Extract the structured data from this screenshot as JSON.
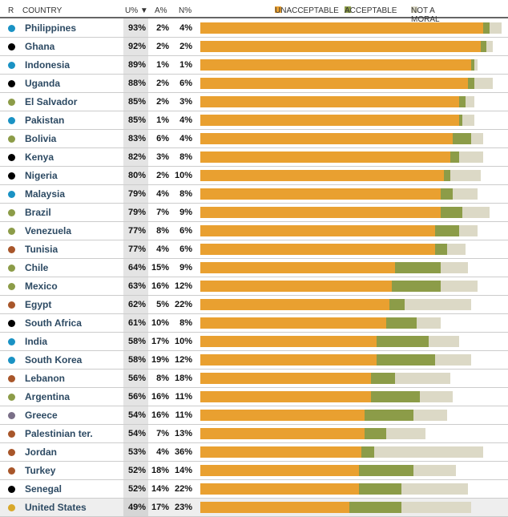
{
  "chart_data": {
    "type": "bar",
    "stacked": true,
    "orientation": "horizontal",
    "columns": {
      "region": "R",
      "country": "COUNTRY",
      "u": "U%",
      "a": "A%",
      "n": "N%",
      "sort_indicator": "▼"
    },
    "legend": [
      {
        "name": "UNACCEPTABLE",
        "color": "#e9a030"
      },
      {
        "name": "ACCEPTABLE",
        "color": "#8c9c48"
      },
      {
        "name": "NOT A MORAL ISSUE",
        "color": "#dcd9c6"
      }
    ],
    "legend_position": "top-right",
    "region_colors": {
      "asia": "#1a92c4",
      "africa": "#000000",
      "latin_america": "#8c9c48",
      "middle_east": "#a8562a",
      "europe": "#7a6f88",
      "us": "#d8a82a"
    },
    "rows": [
      {
        "country": "Philippines",
        "region": "asia",
        "u": 93,
        "a": 2,
        "n": 4
      },
      {
        "country": "Ghana",
        "region": "africa",
        "u": 92,
        "a": 2,
        "n": 2
      },
      {
        "country": "Indonesia",
        "region": "asia",
        "u": 89,
        "a": 1,
        "n": 1
      },
      {
        "country": "Uganda",
        "region": "africa",
        "u": 88,
        "a": 2,
        "n": 6
      },
      {
        "country": "El Salvador",
        "region": "latin_america",
        "u": 85,
        "a": 2,
        "n": 3
      },
      {
        "country": "Pakistan",
        "region": "asia",
        "u": 85,
        "a": 1,
        "n": 4
      },
      {
        "country": "Bolivia",
        "region": "latin_america",
        "u": 83,
        "a": 6,
        "n": 4
      },
      {
        "country": "Kenya",
        "region": "africa",
        "u": 82,
        "a": 3,
        "n": 8
      },
      {
        "country": "Nigeria",
        "region": "africa",
        "u": 80,
        "a": 2,
        "n": 10
      },
      {
        "country": "Malaysia",
        "region": "asia",
        "u": 79,
        "a": 4,
        "n": 8
      },
      {
        "country": "Brazil",
        "region": "latin_america",
        "u": 79,
        "a": 7,
        "n": 9
      },
      {
        "country": "Venezuela",
        "region": "latin_america",
        "u": 77,
        "a": 8,
        "n": 6
      },
      {
        "country": "Tunisia",
        "region": "middle_east",
        "u": 77,
        "a": 4,
        "n": 6
      },
      {
        "country": "Chile",
        "region": "latin_america",
        "u": 64,
        "a": 15,
        "n": 9
      },
      {
        "country": "Mexico",
        "region": "latin_america",
        "u": 63,
        "a": 16,
        "n": 12
      },
      {
        "country": "Egypt",
        "region": "middle_east",
        "u": 62,
        "a": 5,
        "n": 22
      },
      {
        "country": "South Africa",
        "region": "africa",
        "u": 61,
        "a": 10,
        "n": 8
      },
      {
        "country": "India",
        "region": "asia",
        "u": 58,
        "a": 17,
        "n": 10
      },
      {
        "country": "South Korea",
        "region": "asia",
        "u": 58,
        "a": 19,
        "n": 12
      },
      {
        "country": "Lebanon",
        "region": "middle_east",
        "u": 56,
        "a": 8,
        "n": 18
      },
      {
        "country": "Argentina",
        "region": "latin_america",
        "u": 56,
        "a": 16,
        "n": 11
      },
      {
        "country": "Greece",
        "region": "europe",
        "u": 54,
        "a": 16,
        "n": 11
      },
      {
        "country": "Palestinian ter.",
        "region": "middle_east",
        "u": 54,
        "a": 7,
        "n": 13
      },
      {
        "country": "Jordan",
        "region": "middle_east",
        "u": 53,
        "a": 4,
        "n": 36
      },
      {
        "country": "Turkey",
        "region": "middle_east",
        "u": 52,
        "a": 18,
        "n": 14
      },
      {
        "country": "Senegal",
        "region": "africa",
        "u": 52,
        "a": 14,
        "n": 22
      },
      {
        "country": "United States",
        "region": "us",
        "u": 49,
        "a": 17,
        "n": 23,
        "highlight": true
      }
    ]
  }
}
